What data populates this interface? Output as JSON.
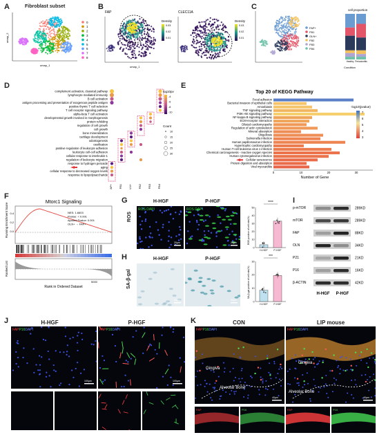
{
  "panels": {
    "A": {
      "letter": "A",
      "title": "Fibroblast subset",
      "xlabel": "umap_1",
      "ylabel": "umap_2",
      "clusters": [
        "0",
        "1",
        "2",
        "3",
        "4",
        "5",
        "6",
        "7",
        "8"
      ],
      "colors": [
        "#f8766d",
        "#d39200",
        "#93aa00",
        "#00ba38",
        "#00c19f",
        "#00b9e3",
        "#619cff",
        "#db72fb",
        "#ff61c3"
      ]
    },
    "B": {
      "letter": "B",
      "plots": [
        "FAP",
        "CLEC11A"
      ],
      "xlabel": "umap_1",
      "legend_title": "Density",
      "ticks": [
        "0.03",
        "0.02",
        "0.01"
      ]
    },
    "C": {
      "letter": "C",
      "legend": [
        "FAP+",
        "FB1",
        "OLN+",
        "FB2",
        "FB3",
        "FB4"
      ],
      "legend_colors": [
        "#6a9bd1",
        "#e3566a",
        "#2b3a5a",
        "#f3c15b",
        "#b0a5d2",
        "#6fc2a8"
      ],
      "title": "cell proportion",
      "xlabel": "Condition",
      "xticks": [
        "Healthy",
        "Periodontitis"
      ]
    },
    "D": {
      "letter": "D",
      "terms": [
        "complement activation, classical pathway",
        "lymphocyte mediated immunity",
        "B cell activation",
        "antigen processing and presentation of exogenous peptide antigen",
        "positive thymic T cell selection",
        "T cell receptor signaling pathway",
        "alpha-beta T cell activation",
        "developmental growth involved in morphogenesis",
        "protein refolding",
        "regulation of cell growth",
        "cell growth",
        "bone mineralization",
        "cartilage development",
        "odontogenesis",
        "ossification",
        "positive regulation of leukocyte adhesion",
        "leukocyte cell-cell adhesion",
        "cellular response to interleukin-1",
        "regulation of leukocyte migration",
        "response to hydrogen peroxide",
        "aging",
        "cellular response to decreased oxygen levels",
        "response to lipopolysaccharide"
      ],
      "groups": [
        "FAP+",
        "FB1",
        "OLN+",
        "FB2",
        "FB3",
        "FB4"
      ],
      "cbar_title": "log10pv",
      "cbar_ticks": [
        "-4",
        "-6",
        "-8",
        "-10"
      ],
      "size_title": "Count",
      "sizes": [
        "10",
        "15",
        "20",
        "25",
        "30"
      ]
    },
    "E": {
      "letter": "E",
      "title": "Top 20 of KEGG Pathway",
      "pathways": [
        "Focal adhesion",
        "Bacterial invasion of epithelial cells",
        "Amoebiasis",
        "TNF signaling pathway",
        "PI3K-Akt signaling pathway",
        "NF-kappa B signaling pathway",
        "ECM-receptor interaction",
        "Dilated cardiomyopathy",
        "Regulation of actin cytoskeleton",
        "Mineral absorption",
        "Shigellosis",
        "Salmonella infection",
        "Human papillomavirus infection",
        "Hypertrophic cardiomyopathy",
        "Human T-cell leukemia virus 1 infection",
        "Chemical carcinogenesis - reactive oxygen species",
        "Human cytomegalovirus infection",
        "Cellular senescence",
        "Protein digestion and absorption",
        "Viral myocarditis"
      ],
      "counts": [
        29,
        12,
        14,
        16,
        33,
        14,
        13,
        12,
        16,
        10,
        18,
        17,
        26,
        11,
        21,
        24,
        20,
        16,
        12,
        13
      ],
      "colors": [
        "#5b7fc6",
        "#f6c46a",
        "#f6c46a",
        "#f2b661",
        "#f6d06e",
        "#f0a65a",
        "#f0a65a",
        "#ef9a58",
        "#ef9a58",
        "#ee8d55",
        "#ee8d55",
        "#ed8452",
        "#ed8452",
        "#ec7c4f",
        "#ec7c4f",
        "#eb744d",
        "#eb744d",
        "#ea6c4a",
        "#ea6c4a",
        "#e96448"
      ],
      "xlabel": "Number of Gene",
      "xticks": [
        "0",
        "10",
        "20",
        "30"
      ],
      "cbar_title": "-log10(pvalue)",
      "cbar_ticks": [
        "7",
        "6",
        "5",
        "4",
        "3"
      ]
    },
    "F": {
      "letter": "F",
      "title": "Mtorc1 Signaling",
      "ylabel_top": "Running Enrichment Score",
      "ylabel_bottom": "Ranked List",
      "xlabel": "Rank in Ordered Dataset",
      "stats": [
        "NES: 1.6603",
        "Pvalue: < 0.001",
        "Ajusted Pvalue: 0.001",
        "OLN+ → FAP+"
      ],
      "yticks": [
        "0.4",
        "0.2",
        "0.0"
      ],
      "xtick": "5000"
    },
    "G": {
      "letter": "G",
      "side": "ROS",
      "conds": [
        "H-HGF",
        "P-HGF"
      ],
      "stain": "ROS DAPI",
      "ylabel": "ROS positive of cell rate(%)",
      "sig": "****",
      "yticks": [
        "50",
        "40",
        "30",
        "20",
        "10",
        "0"
      ],
      "values": [
        3.5,
        33
      ],
      "scale": "20μm"
    },
    "H": {
      "letter": "H",
      "side": "SA-β-gal",
      "conds": [
        "H-HGF",
        "P-HGF"
      ],
      "ylabel": "SA-β-gal positive of cell rate(%)",
      "sig": "***",
      "yticks": [
        "30",
        "20",
        "10",
        "0"
      ],
      "values": [
        8.5,
        19.5
      ],
      "scale": "50μm"
    },
    "I": {
      "letter": "I",
      "rows": [
        "p-mTOR",
        "mTOR",
        "FAP",
        "OLN",
        "P21",
        "P16",
        "β-ACTIN"
      ],
      "kd": [
        "289KD",
        "289KD",
        "88KD",
        "34KD",
        "21KD",
        "16KD",
        "42KD"
      ],
      "conds": [
        "H-HGF",
        "P-HGF"
      ]
    },
    "J": {
      "letter": "J",
      "conds": [
        "H-HGF",
        "P-HGF"
      ],
      "stains": [
        "FAP",
        "P16",
        "DAPI"
      ],
      "scale": "100μm",
      "sub": [
        "FAP",
        "P16"
      ]
    },
    "K": {
      "letter": "K",
      "conds": [
        "CON",
        "LIP mouse"
      ],
      "stains": [
        "FAP",
        "P16",
        "DAPI"
      ],
      "labels": [
        "Gingiva",
        "Alveolar Bone"
      ],
      "scale": "40μm",
      "sub": [
        "FAP",
        "P16"
      ]
    }
  },
  "colors": {
    "fap": "#ff3b3b",
    "p16": "#3bdc4a",
    "dapi": "#4a6bff"
  }
}
